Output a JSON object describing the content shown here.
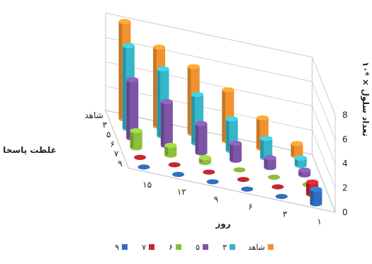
{
  "chart_data": {
    "type": "bar3d",
    "x_categories": [
      "۱",
      "۳",
      "۶",
      "۹",
      "۱۲",
      "۱۵"
    ],
    "depth_categories": [
      "شاهد",
      "۳",
      "۵",
      "۶",
      "۷",
      "۹"
    ],
    "series": [
      {
        "name": "شاهد",
        "color": "#f0922e",
        "values": [
          1.0,
          2.5,
          4.2,
          5.5,
          6.5,
          8.0
        ]
      },
      {
        "name": "۳",
        "color": "#35b6c9",
        "values": [
          0.6,
          1.6,
          2.6,
          4.0,
          5.5,
          6.8
        ]
      },
      {
        "name": "۵",
        "color": "#7c55a6",
        "values": [
          0.4,
          0.8,
          1.4,
          2.4,
          3.6,
          4.8
        ]
      },
      {
        "name": "۶",
        "color": "#8bbf3c",
        "values": [
          0.0,
          0.0,
          0.0,
          0.4,
          0.8,
          1.4
        ]
      },
      {
        "name": "۷",
        "color": "#c9252e",
        "values": [
          1.0,
          0.0,
          0.0,
          0.0,
          0.0,
          0.0
        ]
      },
      {
        "name": "۹",
        "color": "#2f6fc0",
        "values": [
          1.2,
          0.0,
          0.0,
          0.0,
          0.0,
          0.0
        ]
      }
    ],
    "zlim": [
      0,
      8
    ],
    "z_ticks": [
      "0",
      "2",
      "4",
      "6",
      "8"
    ],
    "xlabel": "روز",
    "ylabel": "غلظت پاسخا",
    "zlabel": "تعداد سلول × ۱۰⁶",
    "grid": true,
    "legend_position": "bottom"
  }
}
